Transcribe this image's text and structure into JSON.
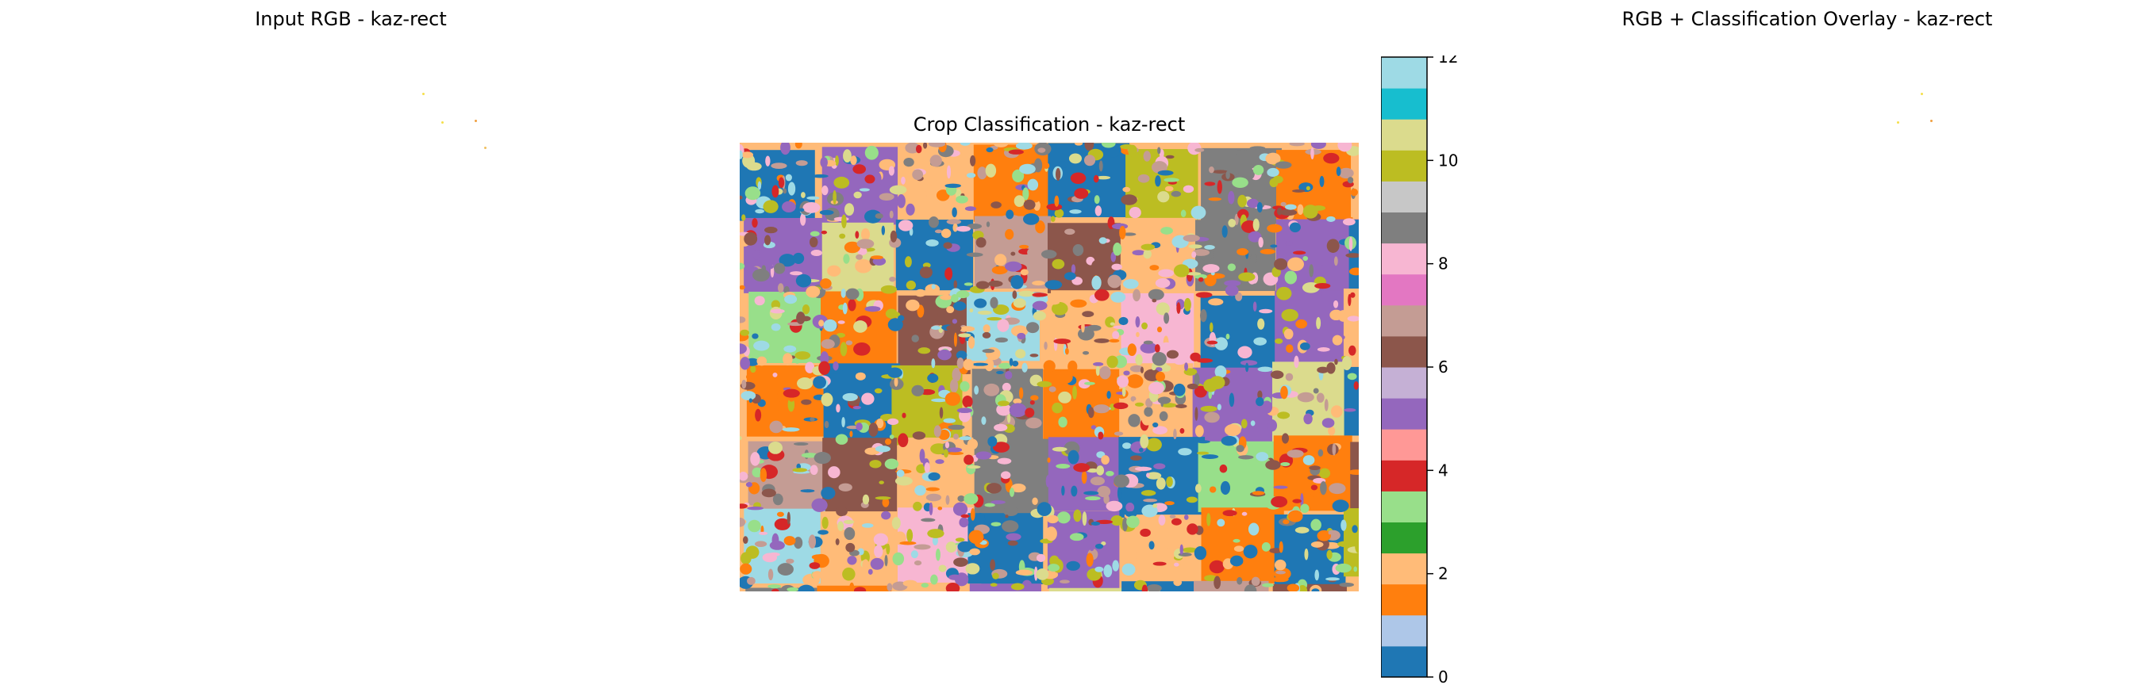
{
  "chart_data": [
    {
      "type": "image",
      "title": "Input RGB - kaz-rect"
    },
    {
      "type": "heatmap",
      "title": "Crop Classification - kaz-rect",
      "colorbar": {
        "vmin": 0,
        "vmax": 12,
        "ticks": [
          0,
          2,
          4,
          6,
          8,
          10,
          12
        ],
        "tick_labels": [
          "0",
          "2",
          "4",
          "6",
          "8",
          "10",
          "12"
        ],
        "colormap": "tab20",
        "colors": [
          "#1f77b4",
          "#aec7e8",
          "#ff7f0e",
          "#ffbb78",
          "#2ca02c",
          "#98df8a",
          "#d62728",
          "#ff9896",
          "#9467bd",
          "#c5b0d5",
          "#8c564b",
          "#c49c94",
          "#e377c2",
          "#f7b6d2",
          "#7f7f7f",
          "#c7c7c7",
          "#bcbd22",
          "#dbdb8d",
          "#17becf",
          "#9edae5"
        ]
      },
      "dominant_classes": [
        0,
        1,
        2,
        3,
        4,
        5,
        6,
        7,
        8,
        9,
        10,
        11,
        12
      ]
    },
    {
      "type": "image",
      "title": "RGB + Classification Overlay - kaz-rect"
    }
  ],
  "colors": {
    "input_speck": "#f5e04a",
    "overlay_speck": "#f0a040"
  }
}
